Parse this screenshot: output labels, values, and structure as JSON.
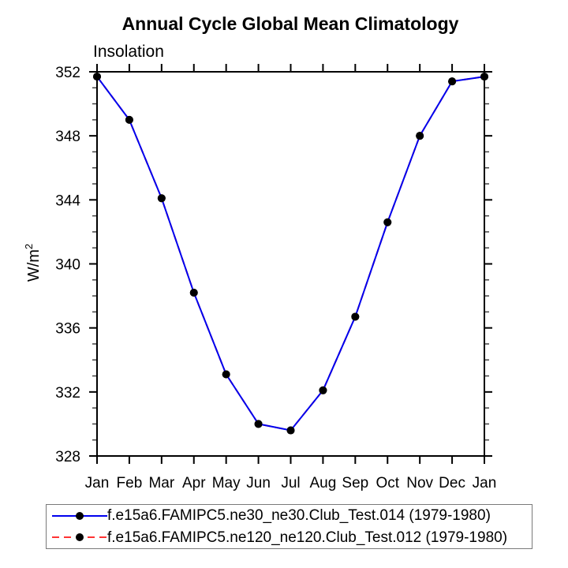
{
  "title": "Annual Cycle Global Mean Climatology",
  "subtitle": "Insolation",
  "y_axis": {
    "unit_main": "W/m",
    "unit_exponent": "2"
  },
  "chart_data": {
    "type": "line",
    "title": "Annual Cycle Global Mean Climatology",
    "subtitle": "Insolation",
    "ylabel": "W/m²",
    "xlabel": "",
    "x_categories": [
      "Jan",
      "Feb",
      "Mar",
      "Apr",
      "May",
      "Jun",
      "Jul",
      "Aug",
      "Sep",
      "Oct",
      "Nov",
      "Dec",
      "Jan"
    ],
    "ylim": [
      328,
      352
    ],
    "yticks": [
      328,
      332,
      336,
      340,
      344,
      348,
      352
    ],
    "y_minor_tick_step": 1,
    "grid": false,
    "legend_position": "bottom",
    "frame_color": "#000000",
    "series": [
      {
        "name": "f.e15a6.FAMIPC5.ne30_ne30.Club_Test.014 (1979-1980)",
        "color": "#0000ee",
        "line_style": "solid",
        "marker": "filled-circle",
        "marker_color": "#000000",
        "values": [
          351.7,
          349.0,
          344.1,
          338.2,
          333.1,
          330.0,
          329.6,
          332.1,
          336.7,
          342.6,
          348.0,
          351.4,
          351.7
        ]
      },
      {
        "name": "f.e15a6.FAMIPC5.ne120_ne120.Club_Test.012 (1979-1980)",
        "color": "#ff3333",
        "line_style": "dashed",
        "marker": "filled-circle",
        "marker_color": "#000000",
        "values": [
          351.7,
          349.0,
          344.1,
          338.2,
          333.1,
          330.0,
          329.6,
          332.1,
          336.7,
          342.6,
          348.0,
          351.4,
          351.7
        ],
        "note": "coincides with series 1; drawn beneath it and not separately visible in plot area"
      }
    ]
  }
}
